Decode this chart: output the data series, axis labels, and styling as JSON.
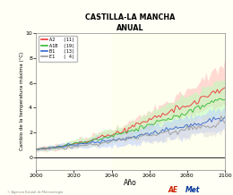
{
  "title": "CASTILLA-LA MANCHA",
  "subtitle": "ANUAL",
  "xlabel": "Año",
  "ylabel": "Cambio de la temperatura máxima (°C)",
  "xlim": [
    2000,
    2100
  ],
  "ylim": [
    -1,
    10
  ],
  "yticks": [
    0,
    2,
    4,
    6,
    8,
    10
  ],
  "xticks": [
    2000,
    2020,
    2040,
    2060,
    2080,
    2100
  ],
  "scenarios": [
    "A2",
    "A1B",
    "B1",
    "E1"
  ],
  "scenario_counts": [
    "(11)",
    "(19)",
    "(13)",
    "( 4)"
  ],
  "colors": [
    "#ee3333",
    "#33bb33",
    "#3366cc",
    "#999999"
  ],
  "shade_colors": [
    "#ffbbbb",
    "#bbffbb",
    "#bbccff",
    "#dddddd"
  ],
  "background_color": "#fffff5",
  "highlight_start": 2040,
  "highlight_color": "#fffff0",
  "seed": 12
}
